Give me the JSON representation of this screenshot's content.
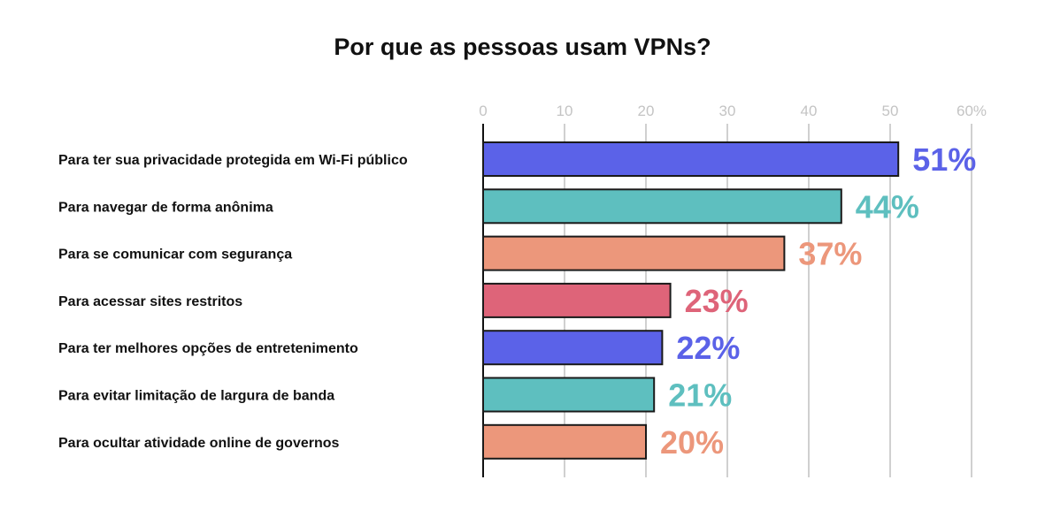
{
  "chart_data": {
    "type": "bar",
    "orientation": "horizontal",
    "title": "Por que as pessoas usam VPNs?",
    "categories": [
      "Para ter sua privacidade protegida em Wi-Fi público",
      "Para navegar de forma anônima",
      "Para se comunicar com segurança",
      "Para acessar sites restritos",
      "Para ter melhores opções de entretenimento",
      "Para evitar limitação de largura de banda",
      "Para ocultar atividade online de governos"
    ],
    "values": [
      51,
      44,
      37,
      23,
      22,
      21,
      20
    ],
    "value_labels": [
      "51%",
      "44%",
      "37%",
      "23%",
      "22%",
      "21%",
      "20%"
    ],
    "colors": [
      "#5b62e8",
      "#5ebfbf",
      "#ec977b",
      "#de6479",
      "#5b62e8",
      "#5ebfbf",
      "#ec977b"
    ],
    "xticks": [
      0,
      10,
      20,
      30,
      40,
      50,
      60
    ],
    "xtick_labels": [
      "0",
      "10",
      "20",
      "30",
      "40",
      "50",
      "60%"
    ],
    "xlim": [
      0,
      60
    ],
    "xlabel": "",
    "ylabel": "",
    "grid": true
  }
}
